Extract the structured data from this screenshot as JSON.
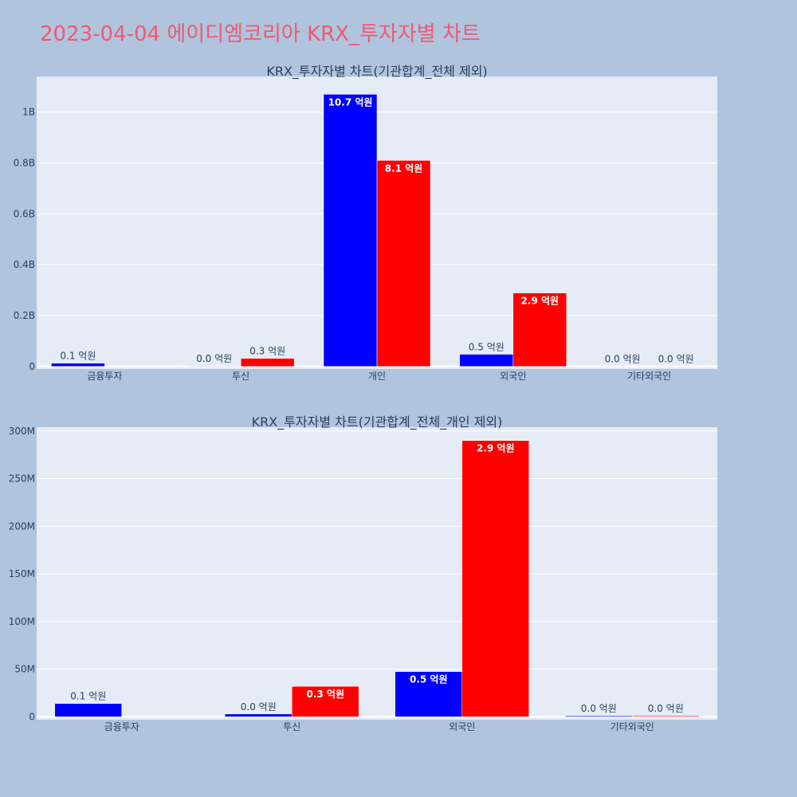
{
  "page": {
    "title": "2023-04-04 에이디엠코리아 KRX_투자자별 차트"
  },
  "colors": {
    "series_1": "#0000ff",
    "series_2": "#ff0000",
    "plot_bg": "#e5ecf6",
    "page_bg": "#b0c4de",
    "title": "#ef5a6f"
  },
  "chart_data": [
    {
      "type": "bar",
      "title": "KRX_투자자별 차트(기관합계_전체 제외)",
      "categories": [
        "금융투자",
        "투신",
        "개인",
        "외국인",
        "기타외국인"
      ],
      "series": [
        {
          "values": [
            13000000,
            2000000,
            1070000000,
            48000000,
            1500000
          ],
          "labels": [
            "0.1 억원",
            "0.0 억원",
            "10.7 억원",
            "0.5 억원",
            "0.0 억원"
          ]
        },
        {
          "values": [
            0,
            32000000,
            810000000,
            289000000,
            1500000
          ],
          "labels": [
            "",
            "0.3 억원",
            "8.1 억원",
            "2.9 억원",
            "0.0 억원"
          ]
        }
      ],
      "ylim": [
        -10000000,
        1140000000
      ],
      "yticks": [
        0,
        200000000,
        400000000,
        600000000,
        800000000,
        1000000000
      ],
      "yticklabels": [
        "0",
        "0.2B",
        "0.4B",
        "0.6B",
        "0.8B",
        "1B"
      ],
      "grid": true
    },
    {
      "type": "bar",
      "title": "KRX_투자자별 차트(기관합계_전체_개인 제외)",
      "categories": [
        "금융투자",
        "투신",
        "외국인",
        "기타외국인"
      ],
      "series": [
        {
          "values": [
            14000000,
            3000000,
            47500000,
            1000000
          ],
          "labels": [
            "0.1 억원",
            "0.0 억원",
            "0.5 억원",
            "0.0 억원"
          ]
        },
        {
          "values": [
            0,
            32000000,
            290000000,
            1000000
          ],
          "labels": [
            "",
            "0.3 억원",
            "2.9 억원",
            "0.0 억원"
          ]
        }
      ],
      "ylim": [
        -3000000,
        304000000
      ],
      "yticks": [
        0,
        50000000,
        100000000,
        150000000,
        200000000,
        250000000,
        300000000
      ],
      "yticklabels": [
        "0",
        "50M",
        "100M",
        "150M",
        "200M",
        "250M",
        "300M"
      ],
      "grid": true
    }
  ]
}
